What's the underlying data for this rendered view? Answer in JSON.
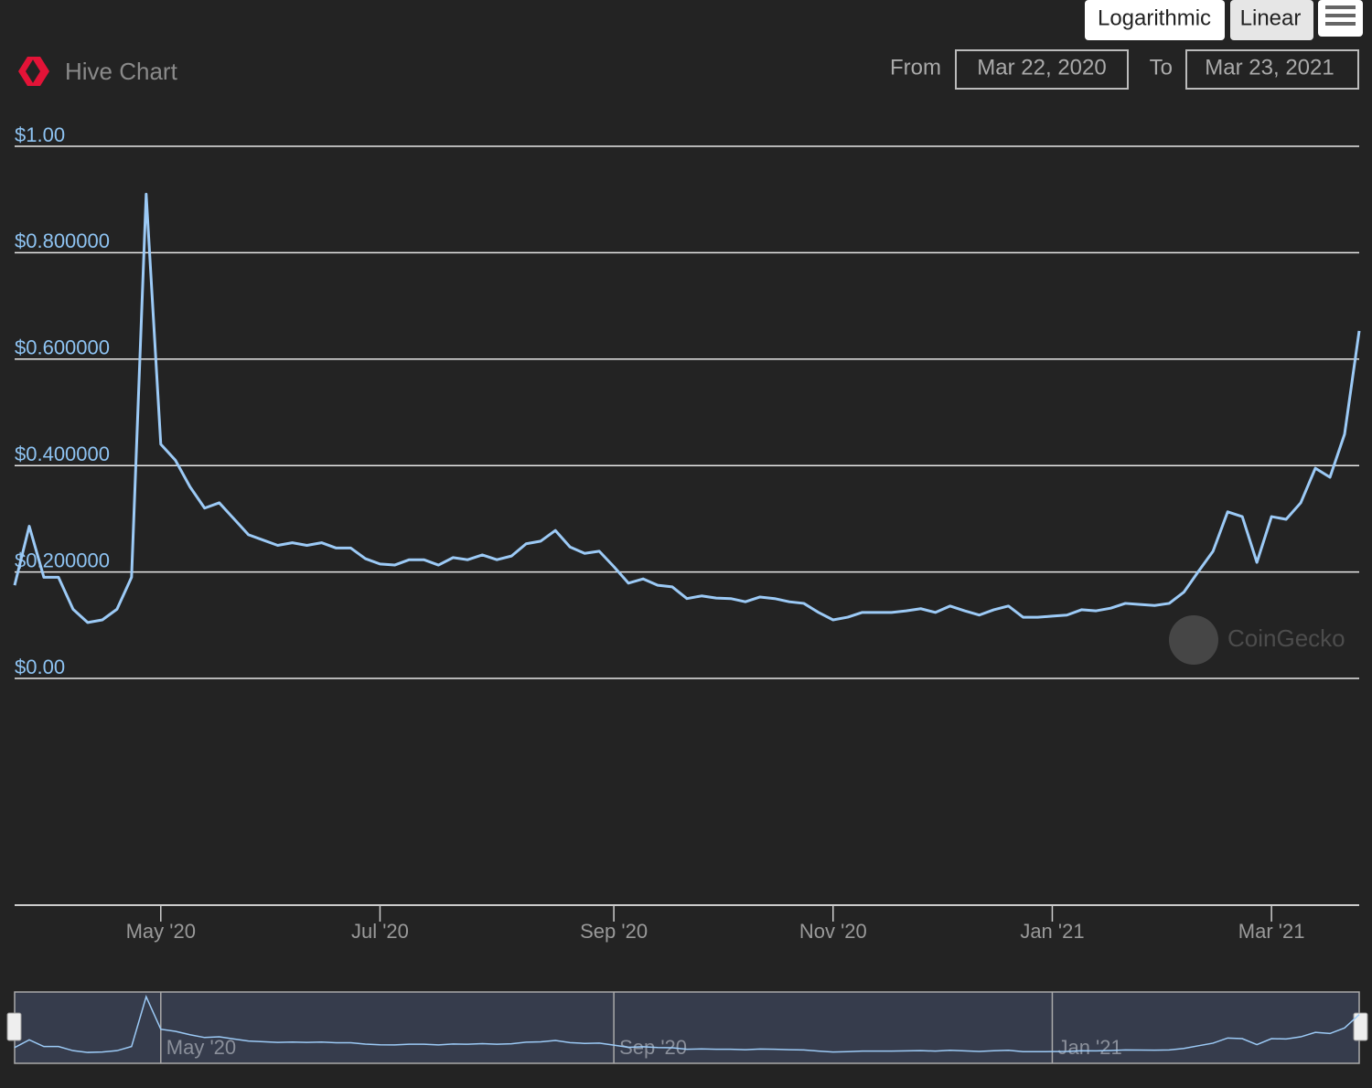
{
  "controls": {
    "scale_buttons": [
      "Logarithmic",
      "Linear"
    ],
    "from_label": "From",
    "from_date": "Mar 22, 2020",
    "to_label": "To",
    "to_date": "Mar 23, 2021"
  },
  "watermark": "CoinGecko",
  "chart_data": {
    "type": "line",
    "title": "Hive Chart",
    "color": "#9ccaf6",
    "grid": true,
    "categories": [
      null,
      null,
      null,
      null,
      null,
      null,
      null,
      null,
      null,
      null,
      "May '20",
      null,
      null,
      null,
      null,
      null,
      null,
      null,
      null,
      null,
      null,
      null,
      null,
      null,
      null,
      "Jul '20",
      null,
      null,
      null,
      null,
      null,
      null,
      null,
      null,
      null,
      null,
      null,
      null,
      null,
      null,
      null,
      "Sep '20",
      null,
      null,
      null,
      null,
      null,
      null,
      null,
      null,
      null,
      null,
      null,
      null,
      null,
      null,
      "Nov '20",
      null,
      null,
      null,
      null,
      null,
      null,
      null,
      null,
      null,
      null,
      null,
      null,
      null,
      null,
      "Jan '21",
      null,
      null,
      null,
      null,
      null,
      null,
      null,
      null,
      null,
      null,
      null,
      null,
      null,
      null,
      "Mar '21",
      null,
      null,
      null,
      null,
      null,
      null
    ],
    "values": [
      0.175,
      0.286,
      0.19,
      0.19,
      0.13,
      0.105,
      0.11,
      0.13,
      0.19,
      0.91,
      0.44,
      0.41,
      0.36,
      0.32,
      0.33,
      0.3,
      0.27,
      0.26,
      0.25,
      0.255,
      0.25,
      0.255,
      0.245,
      0.245,
      0.225,
      0.215,
      0.213,
      0.223,
      0.223,
      0.213,
      0.227,
      0.223,
      0.232,
      0.223,
      0.23,
      0.253,
      0.258,
      0.278,
      0.247,
      0.235,
      0.239,
      0.21,
      0.179,
      0.187,
      0.175,
      0.172,
      0.15,
      0.155,
      0.151,
      0.15,
      0.144,
      0.153,
      0.15,
      0.144,
      0.141,
      0.124,
      0.11,
      0.115,
      0.124,
      0.124,
      0.124,
      0.127,
      0.131,
      0.124,
      0.136,
      0.127,
      0.119,
      0.129,
      0.136,
      0.115,
      0.115,
      0.117,
      0.119,
      0.129,
      0.127,
      0.132,
      0.141,
      0.139,
      0.137,
      0.141,
      0.162,
      0.201,
      0.239,
      0.313,
      0.304,
      0.218,
      0.304,
      0.299,
      0.33,
      0.395,
      0.378,
      0.459,
      0.653
    ],
    "ylim": [
      0,
      1
    ],
    "yticks": [
      {
        "value": 0,
        "label": "$0.00"
      },
      {
        "value": 0.2,
        "label": "$0.200000"
      },
      {
        "value": 0.4,
        "label": "$0.400000"
      },
      {
        "value": 0.6,
        "label": "$0.600000"
      },
      {
        "value": 0.8,
        "label": "$0.800000"
      },
      {
        "value": 1,
        "label": "$1.00"
      }
    ],
    "navigator_labels": [
      "May '20",
      "Sep '20",
      "Jan '21"
    ]
  }
}
